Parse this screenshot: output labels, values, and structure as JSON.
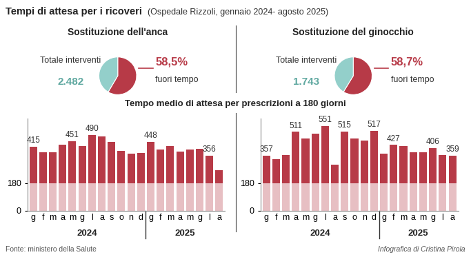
{
  "title": "Tempi di attesa per i ricoveri",
  "subtitle": "(Ospedale Rizzoli, gennaio 2024- agosto 2025)",
  "section_title": "Tempo medio di attesa per prescrizioni a 180 giorni",
  "source": "Fonte: ministero della Salute",
  "credit": "Infografica di Cristina Pirola",
  "chart_data": [
    {
      "type": "pie",
      "title": "Sostituzione dell'anca",
      "total_label": "Totale interventi",
      "total": "2.482",
      "values": [
        58.5,
        41.5
      ],
      "value_labels": [
        "58,5%",
        null
      ],
      "labels": [
        "fuori tempo",
        null
      ],
      "colors": [
        "#b73a47",
        "#93cfca"
      ]
    },
    {
      "type": "pie",
      "title": "Sostituzione del ginocchio",
      "total_label": "Totale interventi",
      "total": "1.743",
      "values": [
        58.7,
        41.3
      ],
      "value_labels": [
        "58,7%",
        null
      ],
      "labels": [
        "fuori tempo",
        null
      ],
      "colors": [
        "#b73a47",
        "#93cfca"
      ]
    },
    {
      "type": "bar",
      "color": "#b73a47",
      "categories": [
        "g",
        "f",
        "m",
        "a",
        "m",
        "g",
        "l",
        "a",
        "s",
        "o",
        "n",
        "d",
        "g",
        "f",
        "m",
        "a",
        "m",
        "g",
        "l",
        "a"
      ],
      "groups": [
        {
          "label": "2024",
          "count": 12
        },
        {
          "label": "2025",
          "count": 8
        }
      ],
      "values": [
        415,
        380,
        380,
        430,
        451,
        420,
        490,
        480,
        445,
        390,
        370,
        375,
        448,
        395,
        420,
        385,
        395,
        400,
        356,
        265
      ],
      "value_labels": [
        "415",
        null,
        null,
        null,
        "451",
        null,
        "490",
        null,
        null,
        null,
        null,
        null,
        "448",
        null,
        null,
        null,
        null,
        null,
        "356",
        null
      ],
      "ylim": [
        0,
        600
      ],
      "yticks": [
        0,
        180
      ]
    },
    {
      "type": "bar",
      "color": "#b73a47",
      "categories": [
        "g",
        "f",
        "m",
        "a",
        "m",
        "g",
        "l",
        "a",
        "s",
        "o",
        "n",
        "d",
        "g",
        "f",
        "m",
        "a",
        "m",
        "g",
        "l",
        "a"
      ],
      "groups": [
        {
          "label": "2024",
          "count": 12
        },
        {
          "label": "2025",
          "count": 8
        }
      ],
      "values": [
        357,
        335,
        360,
        511,
        470,
        500,
        551,
        300,
        515,
        470,
        455,
        517,
        370,
        427,
        420,
        380,
        380,
        406,
        360,
        359
      ],
      "value_labels": [
        "357",
        null,
        null,
        "511",
        null,
        null,
        "551",
        null,
        "515",
        null,
        null,
        "517",
        null,
        "427",
        null,
        null,
        null,
        "406",
        null,
        "359"
      ],
      "ylim": [
        0,
        600
      ],
      "yticks": [
        0,
        180
      ]
    }
  ]
}
